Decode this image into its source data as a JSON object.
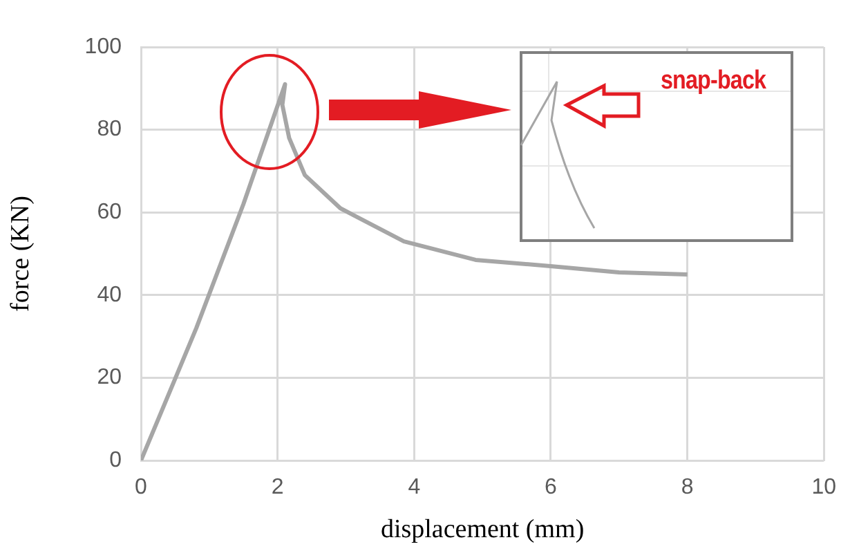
{
  "chart_data": {
    "type": "line",
    "xlabel": "displacement (mm)",
    "ylabel": "force (KN)",
    "series": [
      {
        "color": "#a6a6a6",
        "x": [
          0,
          0.81,
          1.5,
          2.11,
          2.07,
          2.17,
          2.4,
          2.92,
          3.85,
          4.9,
          6,
          7,
          8
        ],
        "values": [
          0,
          32,
          62,
          91,
          86,
          78,
          69,
          61,
          53,
          48.5,
          47,
          45.5,
          45
        ]
      }
    ],
    "xlim": [
      0,
      10
    ],
    "xticks": [
      0,
      2,
      4,
      6,
      8,
      10
    ],
    "ylim": [
      0,
      100
    ],
    "yticks": [
      0,
      20,
      40,
      60,
      80,
      100
    ],
    "grid": true,
    "legend": false,
    "marker": "none",
    "line_style": "solid",
    "annotations": [
      "snap-back"
    ]
  }
}
